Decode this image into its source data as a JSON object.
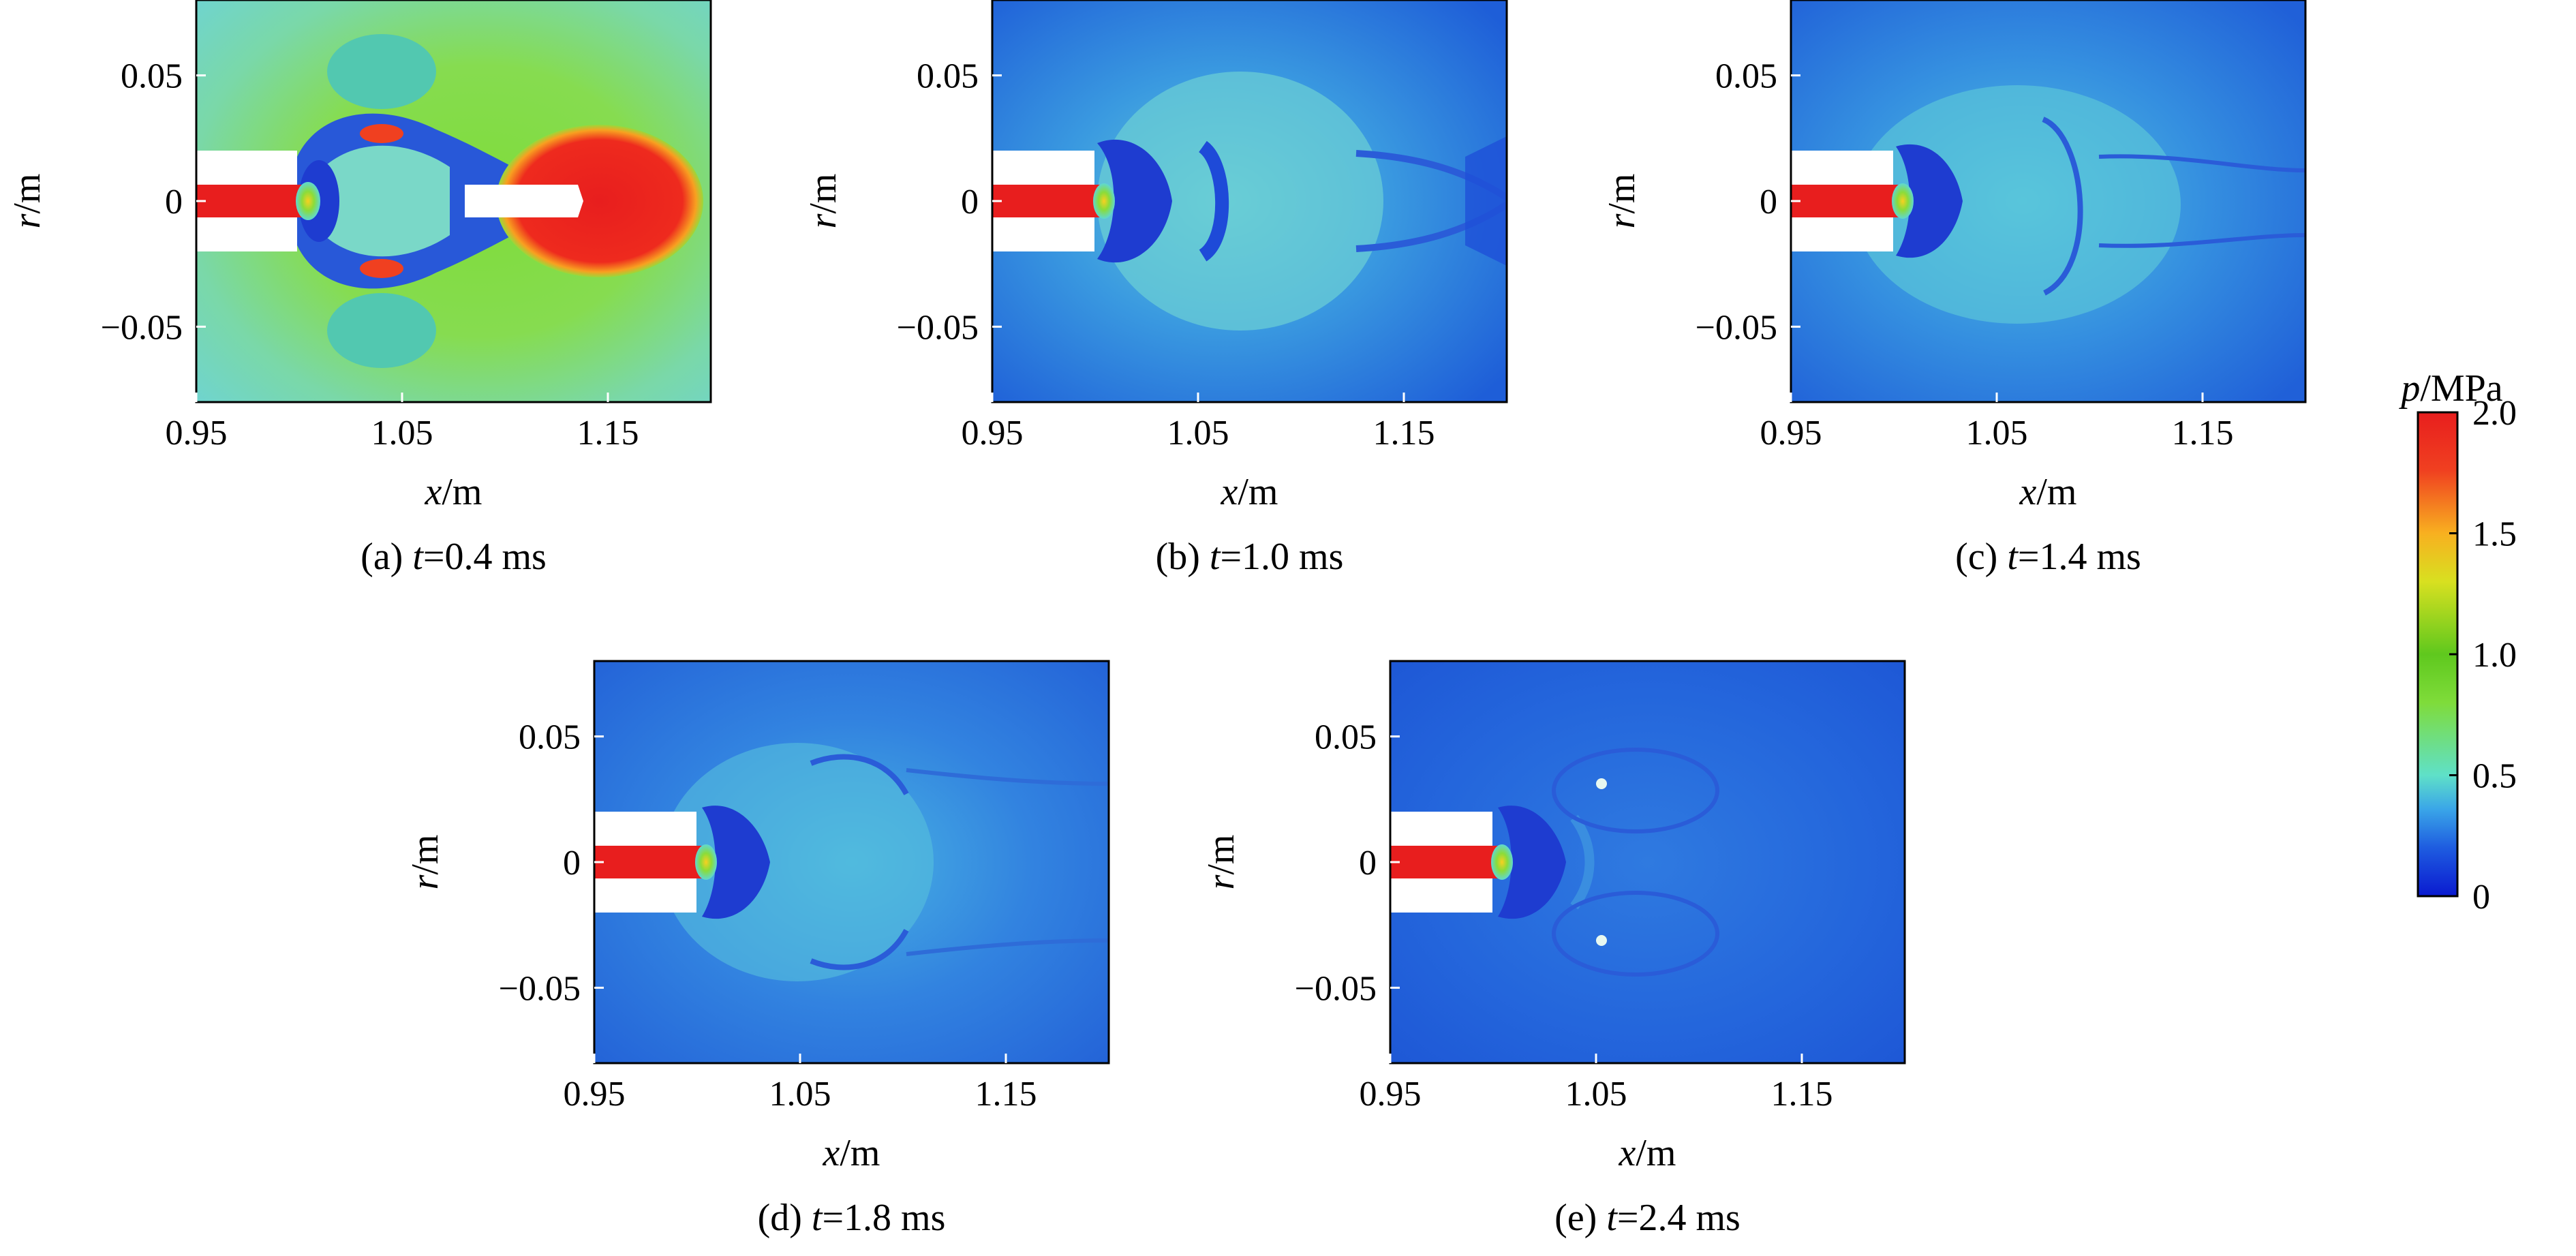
{
  "figure": {
    "colorbar": {
      "label_var": "p",
      "label_unit": "/MPa",
      "ticks": [
        "2.0",
        "1.5",
        "1.0",
        "0.5",
        "0"
      ],
      "tick_values": [
        2.0,
        1.5,
        1.0,
        0.5,
        0
      ],
      "range": [
        0,
        2.0
      ],
      "colormap": [
        "#0a1ad0",
        "#1e5ce0",
        "#3aa6e8",
        "#5fe0c8",
        "#7fdc3a",
        "#5fc81e",
        "#d8e020",
        "#f8b020",
        "#f04020",
        "#e81e1e"
      ]
    }
  },
  "chart_data": [
    {
      "type": "heatmap",
      "caption_prefix": "(a) ",
      "caption_var": "t",
      "caption_rest": "=0.4 ms",
      "time_ms": 0.4,
      "xlabel_var": "x",
      "xlabel_unit": "/m",
      "ylabel_var": "r",
      "ylabel_unit": "/m",
      "xlim": [
        0.95,
        1.2
      ],
      "ylim": [
        -0.08,
        0.08
      ],
      "xticks": [
        "0.95",
        "1.05",
        "1.15"
      ],
      "xtick_values": [
        0.95,
        1.05,
        1.15
      ],
      "yticks": [
        "0.05",
        "0",
        "−0.05"
      ],
      "ytick_values": [
        0.05,
        0,
        -0.05
      ]
    },
    {
      "type": "heatmap",
      "caption_prefix": "(b) ",
      "caption_var": "t",
      "caption_rest": "=1.0 ms",
      "time_ms": 1.0,
      "xlabel_var": "x",
      "xlabel_unit": "/m",
      "ylabel_var": "r",
      "ylabel_unit": "/m",
      "xlim": [
        0.95,
        1.2
      ],
      "ylim": [
        -0.08,
        0.08
      ],
      "xticks": [
        "0.95",
        "1.05",
        "1.15"
      ],
      "xtick_values": [
        0.95,
        1.05,
        1.15
      ],
      "yticks": [
        "0.05",
        "0",
        "−0.05"
      ],
      "ytick_values": [
        0.05,
        0,
        -0.05
      ]
    },
    {
      "type": "heatmap",
      "caption_prefix": "(c) ",
      "caption_var": "t",
      "caption_rest": "=1.4 ms",
      "time_ms": 1.4,
      "xlabel_var": "x",
      "xlabel_unit": "/m",
      "ylabel_var": "r",
      "ylabel_unit": "/m",
      "xlim": [
        0.95,
        1.2
      ],
      "ylim": [
        -0.08,
        0.08
      ],
      "xticks": [
        "0.95",
        "1.05",
        "1.15"
      ],
      "xtick_values": [
        0.95,
        1.05,
        1.15
      ],
      "yticks": [
        "0.05",
        "0",
        "−0.05"
      ],
      "ytick_values": [
        0.05,
        0,
        -0.05
      ]
    },
    {
      "type": "heatmap",
      "caption_prefix": "(d) ",
      "caption_var": "t",
      "caption_rest": "=1.8 ms",
      "time_ms": 1.8,
      "xlabel_var": "x",
      "xlabel_unit": "/m",
      "ylabel_var": "r",
      "ylabel_unit": "/m",
      "xlim": [
        0.95,
        1.2
      ],
      "ylim": [
        -0.08,
        0.08
      ],
      "xticks": [
        "0.95",
        "1.05",
        "1.15"
      ],
      "xtick_values": [
        0.95,
        1.05,
        1.15
      ],
      "yticks": [
        "0.05",
        "0",
        "−0.05"
      ],
      "ytick_values": [
        0.05,
        0,
        -0.05
      ]
    },
    {
      "type": "heatmap",
      "caption_prefix": "(e) ",
      "caption_var": "t",
      "caption_rest": "=2.4 ms",
      "time_ms": 2.4,
      "xlabel_var": "x",
      "xlabel_unit": "/m",
      "ylabel_var": "r",
      "ylabel_unit": "/m",
      "xlim": [
        0.95,
        1.2
      ],
      "ylim": [
        -0.08,
        0.08
      ],
      "xticks": [
        "0.95",
        "1.05",
        "1.15"
      ],
      "xtick_values": [
        0.95,
        1.05,
        1.15
      ],
      "yticks": [
        "0.05",
        "0",
        "−0.05"
      ],
      "ytick_values": [
        0.05,
        0,
        -0.05
      ]
    }
  ]
}
